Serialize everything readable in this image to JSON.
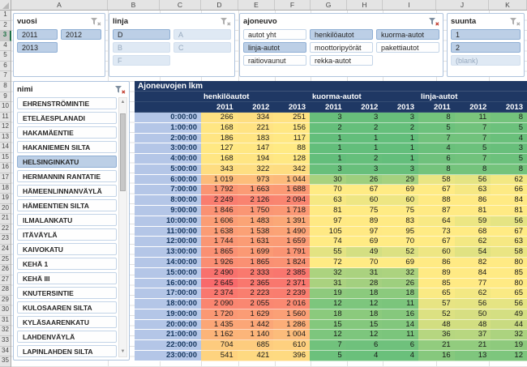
{
  "sheet": {
    "column_headers": [
      "A",
      "B",
      "C",
      "D",
      "E",
      "F",
      "G",
      "H",
      "I",
      "J",
      "K"
    ],
    "row_count": 35,
    "active_row": 3
  },
  "slicers": {
    "vuosi": {
      "title": "vuosi",
      "filter_active": false,
      "items": [
        {
          "label": "2011",
          "state": "selected"
        },
        {
          "label": "2012",
          "state": "selected"
        },
        {
          "label": "2013",
          "state": "selected"
        }
      ]
    },
    "linja": {
      "title": "linja",
      "filter_active": false,
      "items": [
        {
          "label": "D",
          "state": "selected"
        },
        {
          "label": "A",
          "state": "nodata"
        },
        {
          "label": "B",
          "state": "nodata"
        },
        {
          "label": "C",
          "state": "nodata"
        },
        {
          "label": "F",
          "state": "nodata"
        }
      ]
    },
    "ajoneuvo": {
      "title": "ajoneuvo",
      "filter_active": true,
      "items": [
        {
          "label": "autot yht",
          "state": "unselected"
        },
        {
          "label": "henkilöautot",
          "state": "selected"
        },
        {
          "label": "kuorma-autot",
          "state": "selected"
        },
        {
          "label": "linja-autot",
          "state": "selected"
        },
        {
          "label": "moottoripyörät",
          "state": "unselected"
        },
        {
          "label": "pakettiautot",
          "state": "unselected"
        },
        {
          "label": "raitiovaunut",
          "state": "unselected"
        },
        {
          "label": "rekka-autot",
          "state": "unselected"
        }
      ]
    },
    "suunta": {
      "title": "suunta",
      "filter_active": false,
      "items": [
        {
          "label": "1",
          "state": "selected"
        },
        {
          "label": "2",
          "state": "selected"
        },
        {
          "label": "(blank)",
          "state": "nodata"
        }
      ]
    },
    "nimi": {
      "title": "nimi",
      "filter_active": true,
      "scrollable": true,
      "items": [
        {
          "label": "EHRENSTRÖMINTIE",
          "state": "unselected"
        },
        {
          "label": "ETELÄESPLANADI",
          "state": "unselected"
        },
        {
          "label": "HAKAMÄENTIE",
          "state": "unselected"
        },
        {
          "label": "HAKANIEMEN SILTA",
          "state": "unselected"
        },
        {
          "label": "HELSINGINKATU",
          "state": "selected"
        },
        {
          "label": "HERMANNIN RANTATIE",
          "state": "unselected"
        },
        {
          "label": "HÄMEENLINNANVÄYLÄ",
          "state": "unselected"
        },
        {
          "label": "HÄMEENTIEN SILTA",
          "state": "unselected"
        },
        {
          "label": "ILMALANKATU",
          "state": "unselected"
        },
        {
          "label": "ITÄVÄYLÄ",
          "state": "unselected"
        },
        {
          "label": "KAIVOKATU",
          "state": "unselected"
        },
        {
          "label": "KEHÄ 1",
          "state": "unselected"
        },
        {
          "label": "KEHÄ III",
          "state": "unselected"
        },
        {
          "label": "KNUTERSINTIE",
          "state": "unselected"
        },
        {
          "label": "KULOSAAREN SILTA",
          "state": "unselected"
        },
        {
          "label": "KYLÄSAARENKATU",
          "state": "unselected"
        },
        {
          "label": "LAHDENVÄYLÄ",
          "state": "unselected"
        },
        {
          "label": "LAPINLAHDEN SILTA",
          "state": "unselected"
        }
      ]
    }
  },
  "pivot": {
    "title": "Ajoneuvojen lkm",
    "groups": [
      "henkilöautot",
      "kuorma-autot",
      "linja-autot"
    ],
    "years": [
      "2011",
      "2012",
      "2013"
    ],
    "rows": [
      {
        "time": "0:00:00",
        "values": [
          266,
          334,
          251,
          3,
          3,
          3,
          8,
          11,
          8
        ]
      },
      {
        "time": "1:00:00",
        "values": [
          168,
          221,
          156,
          2,
          2,
          2,
          5,
          7,
          5
        ]
      },
      {
        "time": "2:00:00",
        "values": [
          186,
          183,
          117,
          1,
          1,
          1,
          7,
          7,
          4
        ]
      },
      {
        "time": "3:00:00",
        "values": [
          127,
          147,
          88,
          1,
          1,
          1,
          4,
          5,
          3
        ]
      },
      {
        "time": "4:00:00",
        "values": [
          168,
          194,
          128,
          1,
          2,
          1,
          6,
          7,
          5
        ]
      },
      {
        "time": "5:00:00",
        "values": [
          343,
          322,
          342,
          3,
          3,
          3,
          8,
          8,
          8
        ]
      },
      {
        "time": "6:00:00",
        "values": [
          1019,
          973,
          1044,
          30,
          26,
          29,
          58,
          56,
          62
        ]
      },
      {
        "time": "7:00:00",
        "values": [
          1792,
          1663,
          1688,
          70,
          67,
          69,
          67,
          63,
          66
        ]
      },
      {
        "time": "8:00:00",
        "values": [
          2249,
          2126,
          2094,
          63,
          60,
          60,
          88,
          86,
          84
        ]
      },
      {
        "time": "9:00:00",
        "values": [
          1846,
          1750,
          1718,
          81,
          75,
          75,
          87,
          81,
          81
        ]
      },
      {
        "time": "10:00:00",
        "values": [
          1606,
          1483,
          1391,
          97,
          89,
          83,
          64,
          59,
          56
        ]
      },
      {
        "time": "11:00:00",
        "values": [
          1638,
          1538,
          1490,
          105,
          97,
          95,
          73,
          68,
          67
        ]
      },
      {
        "time": "12:00:00",
        "values": [
          1744,
          1631,
          1659,
          74,
          69,
          70,
          67,
          62,
          63
        ]
      },
      {
        "time": "13:00:00",
        "values": [
          1865,
          1699,
          1791,
          55,
          49,
          52,
          60,
          54,
          58
        ]
      },
      {
        "time": "14:00:00",
        "values": [
          1926,
          1865,
          1824,
          72,
          70,
          69,
          86,
          82,
          80
        ]
      },
      {
        "time": "15:00:00",
        "values": [
          2490,
          2333,
          2385,
          32,
          31,
          32,
          89,
          84,
          85
        ]
      },
      {
        "time": "16:00:00",
        "values": [
          2645,
          2365,
          2371,
          31,
          28,
          26,
          85,
          77,
          80
        ]
      },
      {
        "time": "17:00:00",
        "values": [
          2374,
          2223,
          2239,
          19,
          18,
          18,
          65,
          62,
          65
        ]
      },
      {
        "time": "18:00:00",
        "values": [
          2090,
          2055,
          2016,
          12,
          12,
          11,
          57,
          56,
          56
        ]
      },
      {
        "time": "19:00:00",
        "values": [
          1720,
          1629,
          1560,
          18,
          18,
          16,
          52,
          50,
          49
        ]
      },
      {
        "time": "20:00:00",
        "values": [
          1435,
          1442,
          1286,
          15,
          15,
          14,
          48,
          48,
          44
        ]
      },
      {
        "time": "21:00:00",
        "values": [
          1162,
          1140,
          1004,
          12,
          12,
          11,
          36,
          37,
          32
        ]
      },
      {
        "time": "22:00:00",
        "values": [
          704,
          685,
          610,
          7,
          6,
          6,
          21,
          21,
          19
        ]
      },
      {
        "time": "23:00:00",
        "values": [
          541,
          421,
          396,
          5,
          4,
          4,
          16,
          13,
          12
        ]
      }
    ],
    "heat_scale": {
      "min_color": "#63BE7B",
      "mid_color": "#FFEB84",
      "max_color": "#F8696B"
    }
  },
  "colors": {
    "header_navy": "#1F3864",
    "time_column_blue": "#B4C6E7",
    "slicer_selected_blue": "#BCCFE6",
    "active_row_green": "#1E7145",
    "clear_filter_red": "#C0392B"
  }
}
